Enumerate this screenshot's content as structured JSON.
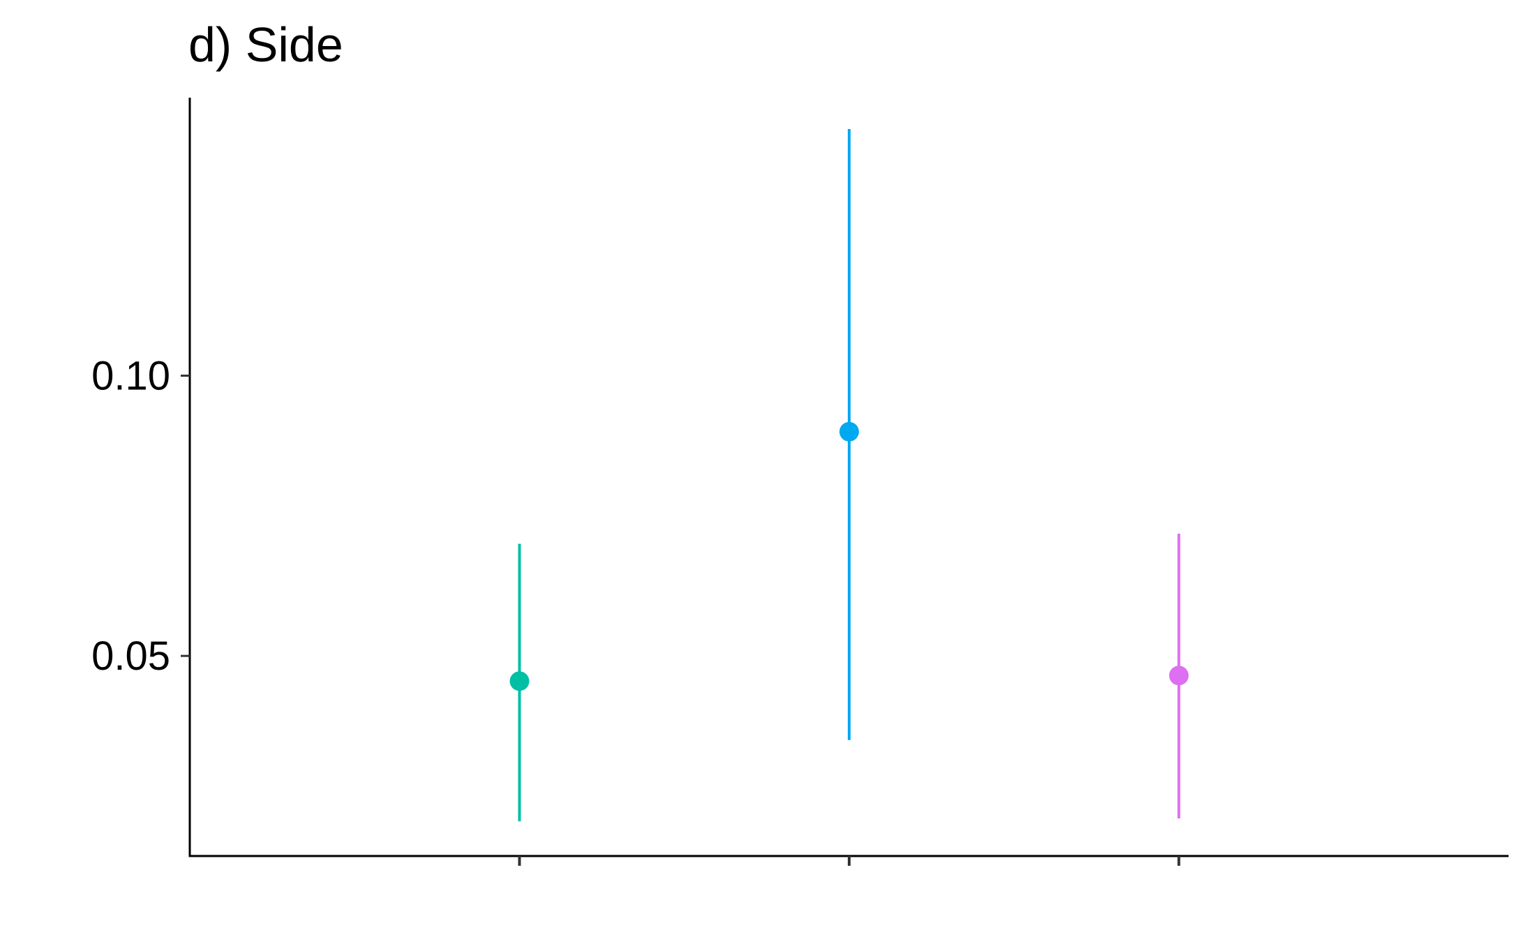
{
  "chart_data": {
    "type": "scatter",
    "title": "d) Side",
    "xlabel": "",
    "ylabel": "",
    "categories": [
      "",
      "",
      ""
    ],
    "points": [
      {
        "estimate": 0.0455,
        "lower": 0.0205,
        "upper": 0.07,
        "color": "#00BFA4"
      },
      {
        "estimate": 0.09,
        "lower": 0.035,
        "upper": 0.144,
        "color": "#00A9F0"
      },
      {
        "estimate": 0.0465,
        "lower": 0.021,
        "upper": 0.0718,
        "color": "#DD6FF1"
      }
    ],
    "y_ticks": [
      {
        "value": 0.05,
        "label": "0.05"
      },
      {
        "value": 0.1,
        "label": "0.10"
      }
    ],
    "ylim": [
      0.0143,
      0.1496
    ],
    "grid": false,
    "legend": "none"
  }
}
